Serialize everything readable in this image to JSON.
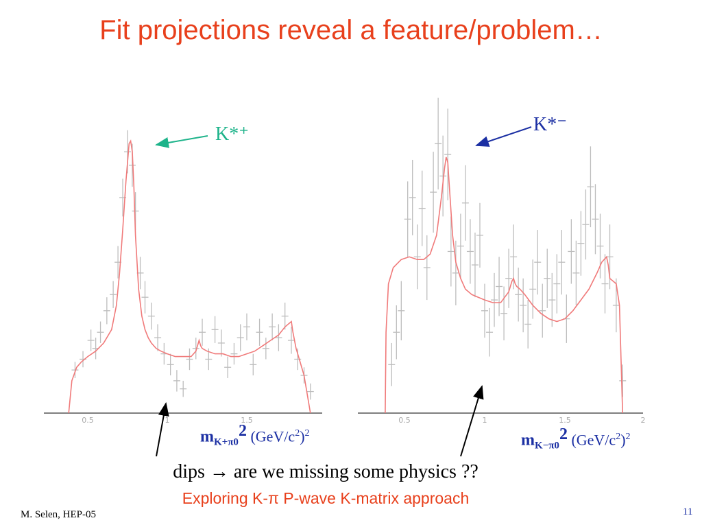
{
  "slide": {
    "title": "Fit projections reveal a feature/problem…",
    "dips_text": "dips → are we missing some physics ??",
    "explore_text": "Exploring K-π P-wave K-matrix approach",
    "footer": "M. Selen, HEP-05",
    "page_number": "11",
    "colors": {
      "title": "#e8401c",
      "axis_label": "#1b2fa3",
      "kplus_annotation": "#1db38a",
      "kminus_annotation": "#1b2fa3",
      "fit_curve": "#f07a7a",
      "data_points": "#bdbdbd"
    }
  },
  "annotations": {
    "kplus": {
      "label": "K*⁺"
    },
    "kminus": {
      "label": "K*⁻"
    }
  },
  "axis_titles": {
    "left": {
      "m": "m",
      "sub": "K+π0",
      "exp": "2",
      "unit": "(GeV/c",
      "unit_exp": "2",
      "unit_close": ")",
      "unit_exp2": "2"
    },
    "right": {
      "m": "m",
      "sub": "K−π0",
      "exp": "2",
      "unit": "(GeV/c",
      "unit_exp": "2",
      "unit_close": ")",
      "unit_exp2": "2"
    }
  },
  "chart_data": [
    {
      "type": "scatter",
      "xlabel": "mK+π0² (GeV/c²)²",
      "ylabel": "",
      "xlim": [
        0.35,
        1.95
      ],
      "ylim": [
        0,
        108
      ],
      "xticks": [
        "0.5",
        "1",
        "1.5"
      ],
      "tick_values": [
        0.5,
        1.0,
        1.5
      ],
      "peak_label": "K*⁺",
      "series": [
        {
          "kind": "data",
          "points": [
            [
              0.42,
              16,
              3
            ],
            [
              0.47,
              20,
              3
            ],
            [
              0.52,
              27,
              4
            ],
            [
              0.55,
              24,
              4
            ],
            [
              0.58,
              30,
              4
            ],
            [
              0.62,
              38,
              5
            ],
            [
              0.66,
              44,
              5
            ],
            [
              0.69,
              56,
              6
            ],
            [
              0.72,
              80,
              7
            ],
            [
              0.75,
              97,
              8
            ],
            [
              0.78,
              92,
              8
            ],
            [
              0.8,
              75,
              7
            ],
            [
              0.83,
              52,
              6
            ],
            [
              0.86,
              43,
              6
            ],
            [
              0.9,
              36,
              5
            ],
            [
              0.94,
              28,
              5
            ],
            [
              0.98,
              22,
              4
            ],
            [
              1.02,
              18,
              4
            ],
            [
              1.06,
              12,
              4
            ],
            [
              1.1,
              9,
              3
            ],
            [
              1.14,
              20,
              4
            ],
            [
              1.18,
              24,
              4
            ],
            [
              1.22,
              30,
              5
            ],
            [
              1.26,
              20,
              4
            ],
            [
              1.3,
              31,
              5
            ],
            [
              1.34,
              26,
              5
            ],
            [
              1.38,
              17,
              4
            ],
            [
              1.42,
              22,
              4
            ],
            [
              1.46,
              28,
              5
            ],
            [
              1.5,
              32,
              5
            ],
            [
              1.54,
              18,
              4
            ],
            [
              1.58,
              30,
              5
            ],
            [
              1.62,
              24,
              4
            ],
            [
              1.66,
              32,
              5
            ],
            [
              1.7,
              28,
              5
            ],
            [
              1.74,
              36,
              5
            ],
            [
              1.78,
              27,
              5
            ],
            [
              1.82,
              20,
              4
            ],
            [
              1.86,
              14,
              3
            ],
            [
              1.9,
              8,
              3
            ]
          ]
        },
        {
          "kind": "fit",
          "x": [
            0.38,
            0.4,
            0.43,
            0.46,
            0.5,
            0.55,
            0.6,
            0.65,
            0.68,
            0.7,
            0.72,
            0.74,
            0.76,
            0.77,
            0.78,
            0.79,
            0.8,
            0.82,
            0.84,
            0.86,
            0.88,
            0.9,
            0.93,
            0.96,
            1.0,
            1.05,
            1.1,
            1.15,
            1.18,
            1.19,
            1.2,
            1.21,
            1.22,
            1.25,
            1.3,
            1.35,
            1.4,
            1.45,
            1.5,
            1.55,
            1.6,
            1.65,
            1.7,
            1.74,
            1.78,
            1.79,
            1.81,
            1.83,
            1.86,
            1.9
          ],
          "y": [
            0,
            12,
            17,
            19,
            21,
            23,
            26,
            31,
            40,
            52,
            68,
            86,
            100,
            101,
            97,
            84,
            66,
            46,
            36,
            31,
            28,
            26,
            24,
            23,
            22,
            21,
            21,
            21,
            23,
            25,
            27,
            25,
            24,
            23,
            22,
            22,
            21,
            21,
            22,
            23,
            25,
            27,
            29,
            32,
            34,
            30,
            24,
            20,
            14,
            0
          ]
        }
      ]
    },
    {
      "type": "scatter",
      "xlabel": "mK−π0² (GeV/c²)²",
      "ylabel": "",
      "xlim": [
        0.35,
        1.95
      ],
      "ylim": [
        0,
        108
      ],
      "xticks": [
        "0.5",
        "1",
        "1.5",
        "2"
      ],
      "tick_values": [
        0.5,
        1.0,
        1.5,
        2.0
      ],
      "peak_label": "K*⁻",
      "series": [
        {
          "kind": "data",
          "points": [
            [
              0.42,
              18,
              8
            ],
            [
              0.45,
              30,
              10
            ],
            [
              0.48,
              38,
              11
            ],
            [
              0.52,
              72,
              14
            ],
            [
              0.55,
              80,
              14
            ],
            [
              0.58,
              58,
              12
            ],
            [
              0.61,
              76,
              14
            ],
            [
              0.64,
              54,
              12
            ],
            [
              0.68,
              82,
              15
            ],
            [
              0.71,
              100,
              17
            ],
            [
              0.74,
              88,
              15
            ],
            [
              0.77,
              96,
              17
            ],
            [
              0.79,
              60,
              13
            ],
            [
              0.82,
              52,
              12
            ],
            [
              0.85,
              62,
              12
            ],
            [
              0.88,
              78,
              14
            ],
            [
              0.91,
              60,
              12
            ],
            [
              0.94,
              55,
              12
            ],
            [
              0.97,
              66,
              12
            ],
            [
              1.0,
              38,
              10
            ],
            [
              1.03,
              30,
              9
            ],
            [
              1.06,
              42,
              10
            ],
            [
              1.09,
              47,
              11
            ],
            [
              1.12,
              37,
              10
            ],
            [
              1.15,
              50,
              11
            ],
            [
              1.18,
              58,
              12
            ],
            [
              1.21,
              44,
              10
            ],
            [
              1.24,
              40,
              10
            ],
            [
              1.27,
              33,
              9
            ],
            [
              1.3,
              46,
              11
            ],
            [
              1.33,
              56,
              12
            ],
            [
              1.36,
              38,
              10
            ],
            [
              1.39,
              50,
              11
            ],
            [
              1.42,
              42,
              10
            ],
            [
              1.45,
              48,
              11
            ],
            [
              1.48,
              56,
              12
            ],
            [
              1.51,
              35,
              9
            ],
            [
              1.54,
              60,
              12
            ],
            [
              1.57,
              52,
              12
            ],
            [
              1.6,
              63,
              12
            ],
            [
              1.63,
              70,
              13
            ],
            [
              1.66,
              84,
              15
            ],
            [
              1.69,
              72,
              13
            ],
            [
              1.72,
              62,
              12
            ],
            [
              1.75,
              48,
              11
            ],
            [
              1.78,
              58,
              12
            ],
            [
              1.82,
              40,
              10
            ],
            [
              1.86,
              12,
              6
            ]
          ]
        },
        {
          "kind": "fit",
          "x": [
            0.38,
            0.385,
            0.4,
            0.43,
            0.48,
            0.53,
            0.58,
            0.62,
            0.66,
            0.7,
            0.73,
            0.75,
            0.76,
            0.77,
            0.78,
            0.8,
            0.82,
            0.85,
            0.88,
            0.92,
            0.96,
            1.0,
            1.05,
            1.1,
            1.15,
            1.17,
            1.18,
            1.19,
            1.2,
            1.22,
            1.25,
            1.3,
            1.35,
            1.4,
            1.45,
            1.5,
            1.55,
            1.6,
            1.65,
            1.7,
            1.73,
            1.76,
            1.77,
            1.78,
            1.8,
            1.82,
            1.84,
            1.86
          ],
          "y": [
            0,
            30,
            48,
            54,
            57,
            58,
            57,
            57,
            59,
            66,
            80,
            91,
            95,
            93,
            84,
            66,
            56,
            50,
            46,
            44,
            43,
            42,
            41,
            41,
            45,
            49,
            50,
            48,
            47,
            46,
            44,
            40,
            37,
            35,
            34,
            35,
            38,
            42,
            46,
            52,
            56,
            58,
            55,
            50,
            49,
            48,
            40,
            0
          ]
        }
      ]
    }
  ]
}
